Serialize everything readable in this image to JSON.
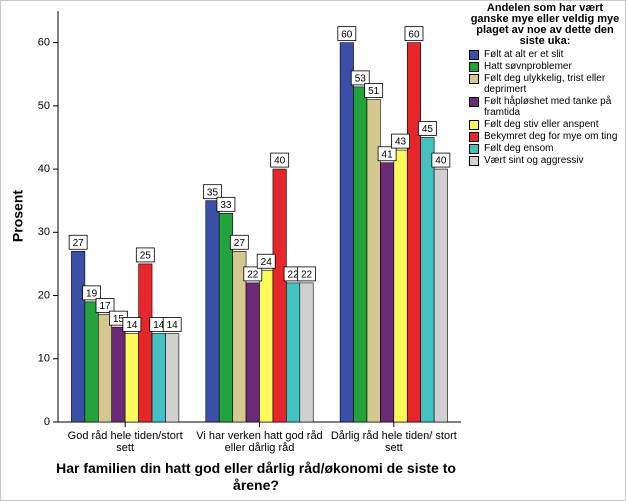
{
  "chart_data": {
    "type": "bar",
    "y_label": "Prosent",
    "x_label": "Har familien din hatt god eller dårlig råd/økonomi de siste to årene?",
    "legend_title": "Andelen som har vært ganske mye eller veldig mye plaget av noe av dette den siste uka:",
    "categories": [
      "God råd hele tiden/stort sett",
      "Vi har verken hatt god råd eller dårlig råd",
      "Dårlig råd hele tiden/ stort sett"
    ],
    "series": [
      {
        "name": "Følt at alt er et slit",
        "color": "#3b4ea8",
        "values": [
          27,
          35,
          60
        ]
      },
      {
        "name": "Hatt søvnproblemer",
        "color": "#22a33c",
        "values": [
          19,
          33,
          53
        ]
      },
      {
        "name": "Følt deg ulykkelig, trist eller deprimert",
        "color": "#d5c88e",
        "values": [
          17,
          27,
          51
        ]
      },
      {
        "name": "Følt håpløshet med tanke på framtida",
        "color": "#6b2a78",
        "values": [
          15,
          22,
          41
        ]
      },
      {
        "name": "Følt deg stiv eller anspent",
        "color": "#fbfb5c",
        "values": [
          14,
          24,
          43
        ]
      },
      {
        "name": "Bekymret deg for mye om ting",
        "color": "#e5262a",
        "values": [
          25,
          40,
          60
        ]
      },
      {
        "name": "Følt deg ensom",
        "color": "#45c1c1",
        "values": [
          14,
          22,
          45
        ]
      },
      {
        "name": "Vært sint og aggressiv",
        "color": "#d0d0d0",
        "values": [
          14,
          22,
          40
        ]
      }
    ],
    "ylim": [
      0,
      65
    ],
    "yticks": [
      0,
      10,
      20,
      30,
      40,
      50,
      60
    ],
    "legend_position": "right"
  }
}
